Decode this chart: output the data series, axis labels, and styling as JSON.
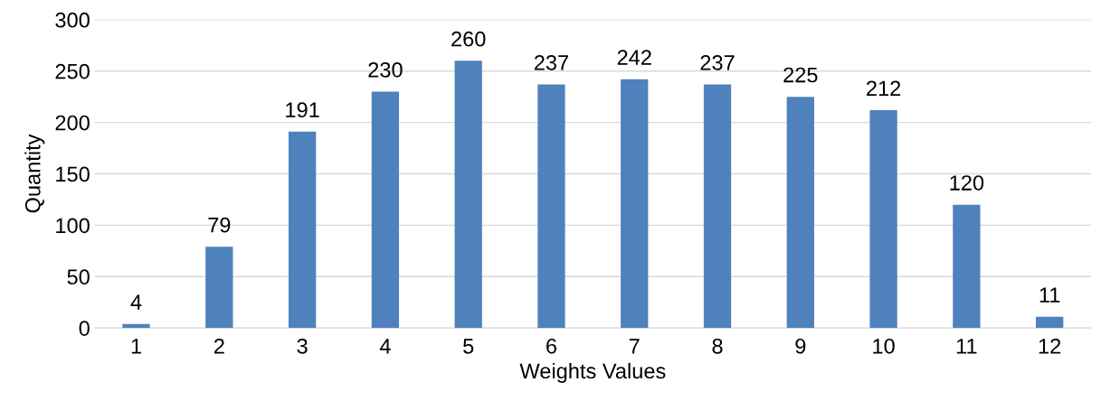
{
  "chart_data": {
    "type": "bar",
    "xlabel": "Weights Values",
    "ylabel": "Quantity",
    "categories": [
      "1",
      "2",
      "3",
      "4",
      "5",
      "6",
      "7",
      "8",
      "9",
      "10",
      "11",
      "12"
    ],
    "values": [
      4,
      79,
      191,
      230,
      260,
      237,
      242,
      237,
      225,
      212,
      120,
      11
    ],
    "color": "#4f81bd",
    "ylim": [
      0,
      300
    ],
    "yticks": [
      0,
      50,
      100,
      150,
      200,
      250,
      300
    ],
    "grid": "y",
    "data_labels": true,
    "legend": false
  }
}
